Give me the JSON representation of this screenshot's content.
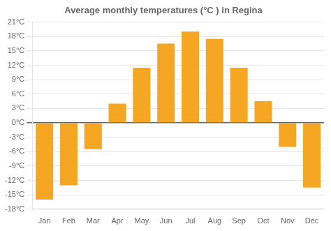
{
  "chart_data": {
    "type": "bar",
    "title": "Average monthly temperatures (°C ) in Regina",
    "categories": [
      "Jan",
      "Feb",
      "Mar",
      "Apr",
      "May",
      "Jun",
      "Jul",
      "Aug",
      "Sep",
      "Oct",
      "Nov",
      "Dec"
    ],
    "values": [
      -16,
      -13,
      -5.5,
      4,
      11.5,
      16.5,
      19,
      17.5,
      11.5,
      4.5,
      -5,
      -13.5
    ],
    "color": "#F5A623",
    "ylim": [
      -18,
      21
    ],
    "yticks": [
      {
        "value": -18,
        "label": "-18°C"
      },
      {
        "value": -15,
        "label": "-15°C"
      },
      {
        "value": -12,
        "label": "-12°C"
      },
      {
        "value": -9,
        "label": "-9°C"
      },
      {
        "value": -6,
        "label": "-6°C"
      },
      {
        "value": -3,
        "label": "-3°C"
      },
      {
        "value": 0,
        "label": "0°C"
      },
      {
        "value": 3,
        "label": "3°C"
      },
      {
        "value": 6,
        "label": "6°C"
      },
      {
        "value": 9,
        "label": "9°C"
      },
      {
        "value": 12,
        "label": "12°C"
      },
      {
        "value": 15,
        "label": "15°C"
      },
      {
        "value": 18,
        "label": "18°C"
      },
      {
        "value": 21,
        "label": "21°C"
      }
    ],
    "grid": true
  }
}
